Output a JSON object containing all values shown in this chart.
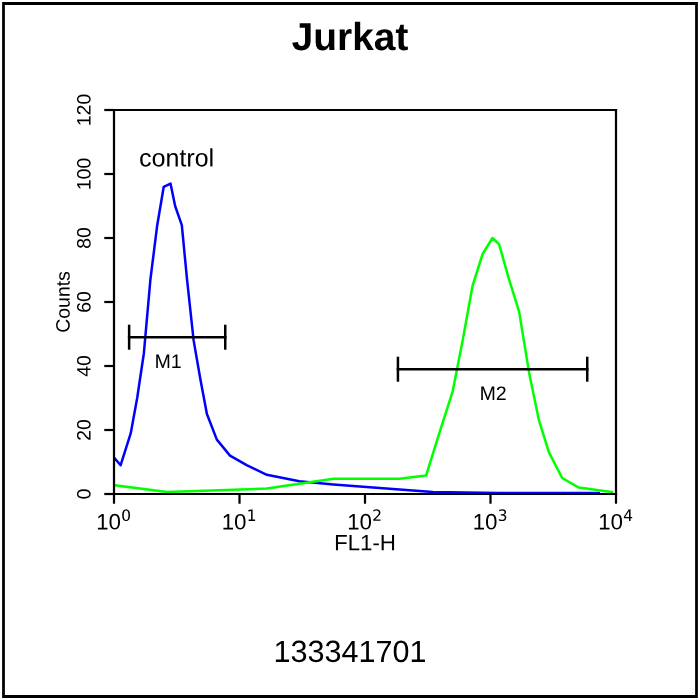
{
  "chart_data": {
    "type": "line",
    "title": "Jurkat",
    "xlabel": "FL1-H",
    "ylabel": "Counts",
    "log": "x",
    "xlim": [
      1,
      10000
    ],
    "ylim": [
      0,
      120
    ],
    "xticks": [
      {
        "value": 1,
        "label": "10$^{0}$"
      },
      {
        "value": 10,
        "label": "10$^{1}$"
      },
      {
        "value": 100,
        "label": "10$^{2}$"
      },
      {
        "value": 1000,
        "label": "10$^{3}$"
      },
      {
        "value": 10000,
        "label": "10$^{4}$"
      }
    ],
    "yticks": [
      0,
      20,
      40,
      60,
      80,
      100,
      120
    ],
    "grid": false,
    "marker": "none",
    "line_style": "solid",
    "series": [
      {
        "color": "#0000ff",
        "x": [
          1.02,
          1.13,
          1.36,
          1.53,
          1.73,
          1.95,
          2.21,
          2.49,
          2.82,
          3.07,
          3.47,
          3.82,
          4.31,
          4.87,
          5.5,
          6.6,
          8.4,
          11.4,
          16.5,
          30,
          56,
          116,
          347,
          1170,
          7300
        ],
        "values": [
          11,
          9,
          19,
          30,
          44,
          67,
          84,
          96,
          97,
          90,
          84,
          67,
          48,
          36,
          25,
          17,
          12,
          9,
          6,
          4,
          3,
          2,
          0.6,
          0.3,
          0.3
        ]
      },
      {
        "color": "#00ff00",
        "x": [
          1.02,
          2.65,
          16.5,
          56,
          188,
          307,
          391,
          499,
          600,
          719,
          865,
          1037,
          1172,
          1407,
          1690,
          2028,
          2434,
          2922,
          3726,
          5058,
          9290
        ],
        "values": [
          2.7,
          0.6,
          1.7,
          4.8,
          4.8,
          5.8,
          19,
          32,
          48,
          65,
          75,
          80,
          78,
          67,
          57,
          38,
          23,
          13,
          5,
          2,
          0.6
        ]
      },
      {
        "color": "#000000",
        "x": [
          1.32,
          7.7
        ],
        "values": [
          49,
          49
        ]
      },
      {
        "color": "#000000",
        "x": [
          183,
          5900
        ],
        "values": [
          39,
          39
        ]
      }
    ],
    "annotations": [
      "control",
      {
        "text": "M1",
        "x": 2.7,
        "y": 49
      },
      {
        "text": "M2",
        "x": 1050,
        "y": 39
      },
      "133341701"
    ]
  }
}
